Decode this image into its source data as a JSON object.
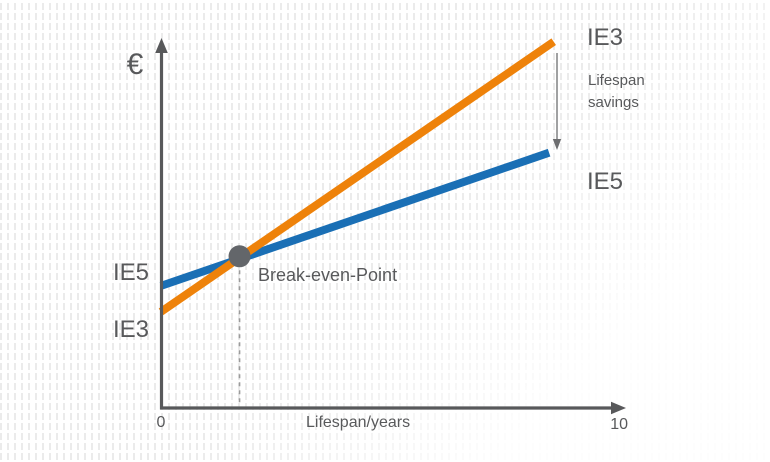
{
  "labels": {
    "y_axis_unit": "€",
    "ie5_intercept": "IE5",
    "ie3_intercept": "IE3",
    "break_even": "Break-even-Point",
    "ie3_line_end": "IE3",
    "lifespan_savings": "Lifespan savings",
    "ie5_line_end": "IE5",
    "x_origin": "0",
    "x_axis_title": "Lifespan/years",
    "x_max": "10"
  },
  "colors": {
    "ie3_line": "#EE820A",
    "ie5_line": "#1A6FB5",
    "axis": "#58595B",
    "text": "#58595B",
    "break_even_dot": "#63666A"
  },
  "chart_data": {
    "type": "line",
    "title": "",
    "xlabel": "Lifespan/years",
    "ylabel": "€",
    "xlim": [
      0,
      10
    ],
    "ylim": [
      0,
      100
    ],
    "x_ticks_labeled": [
      "0",
      "10"
    ],
    "y_axis_numeric_labels": false,
    "grid": false,
    "legend_position": "inline-labels",
    "series": [
      {
        "name": "IE3",
        "color": "#EE820A",
        "x": [
          0,
          8.5
        ],
        "y": [
          26,
          99
        ]
      },
      {
        "name": "IE5",
        "color": "#1A6FB5",
        "x": [
          0,
          8.4
        ],
        "y": [
          33,
          69
        ]
      }
    ],
    "break_even_point": {
      "x": 1.7,
      "y": 41,
      "label": "Break-even-Point"
    },
    "annotations": [
      {
        "label": "Lifespan savings",
        "type": "vertical-arrow",
        "meaning": "cost gap between IE3 and IE5 lines at end of lifespan"
      }
    ]
  }
}
